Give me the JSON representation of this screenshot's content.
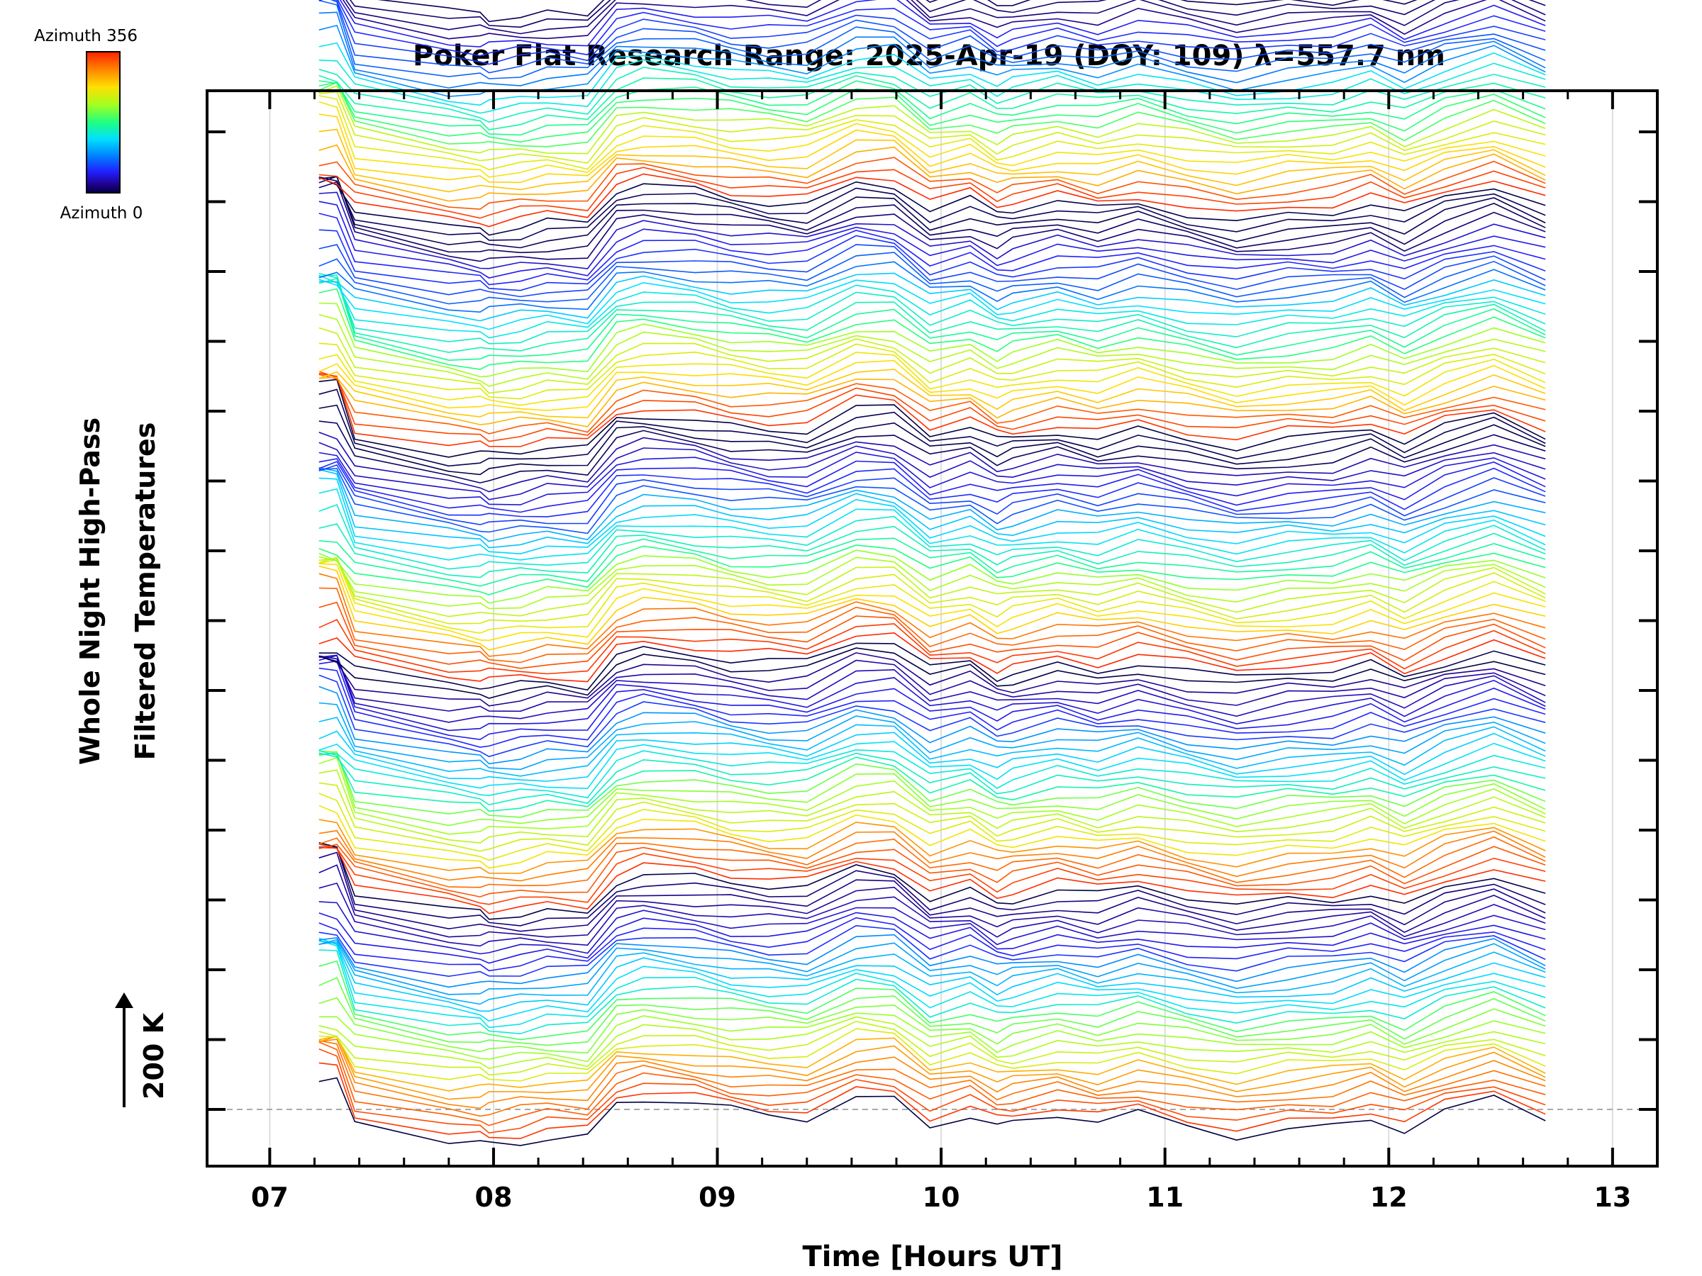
{
  "chart_data": {
    "type": "line",
    "title": "Poker Flat Research Range: 2025-Apr-19 (DOY: 109) λ=557.7 nm",
    "xlabel": "Time [Hours UT]",
    "ylabel_line1": "Whole Night High-Pass",
    "ylabel_line2": "Filtered Temperatures",
    "scale_label": "200 K",
    "colorbar": {
      "top_label": "Azimuth 356",
      "bottom_label": "Azimuth 0",
      "colors": [
        "#ff2000",
        "#ff8000",
        "#ffe000",
        "#a0ff20",
        "#20ff80",
        "#00e0ff",
        "#0080ff",
        "#2020ff",
        "#20008f",
        "#000040"
      ]
    },
    "xlim": [
      6.72,
      13.2
    ],
    "x_ticks": [
      {
        "value": 7,
        "label": "07"
      },
      {
        "value": 8,
        "label": "08"
      },
      {
        "value": 9,
        "label": "09"
      },
      {
        "value": 10,
        "label": "10"
      },
      {
        "value": 11,
        "label": "11"
      },
      {
        "value": 12,
        "label": "12"
      },
      {
        "value": 13,
        "label": "13"
      }
    ],
    "grid": true,
    "stacking": "vertically offset traces, one per azimuth, colored by azimuth",
    "n_traces": 150,
    "time_hours": [
      7.22,
      7.3,
      7.38,
      7.8,
      7.94,
      7.98,
      8.12,
      8.24,
      8.42,
      8.55,
      8.67,
      8.9,
      9.06,
      9.23,
      9.4,
      9.62,
      9.79,
      9.95,
      10.13,
      10.25,
      10.32,
      10.52,
      10.7,
      10.88,
      11.1,
      11.32,
      11.55,
      11.75,
      11.92,
      12.07,
      12.25,
      12.47,
      12.7
    ],
    "base_profile_K": [
      120,
      120,
      -35,
      -85,
      -90,
      -95,
      -88,
      -78,
      -82,
      10,
      25,
      12,
      -5,
      -15,
      -20,
      40,
      35,
      -40,
      -15,
      -55,
      -45,
      -20,
      -40,
      -15,
      -45,
      -70,
      -50,
      -45,
      -22,
      -60,
      -12,
      25,
      -30
    ],
    "legend": "top-left colorbar"
  }
}
